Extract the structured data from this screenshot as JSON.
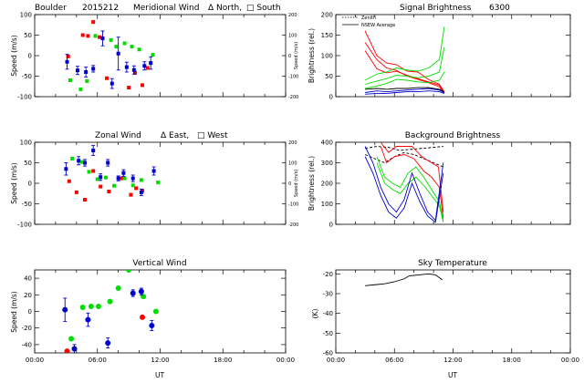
{
  "colors": {
    "north": "#ff0000",
    "south": "#00dd00",
    "mean": "#0000cc",
    "other": "#000000"
  },
  "chart_data": [
    {
      "type": "scatter",
      "id": "meridional",
      "title_parts": [
        "Boulder",
        "2015212",
        "Meridional Wind",
        "Δ North, ",
        "□ South"
      ],
      "ylabel": "Speed (m/s)",
      "y2label": "Speed (m/s)",
      "xlim": [
        0,
        24
      ],
      "ylim": [
        -100,
        100
      ],
      "y2lim": [
        -200,
        200
      ],
      "xticks": [],
      "yticks": [
        -100,
        -50,
        0,
        50,
        100
      ],
      "y2ticks": [
        -200,
        -100,
        0,
        100,
        200
      ],
      "series": [
        {
          "role": "north",
          "x": [
            3.2,
            4.6,
            5.1,
            5.6,
            6.2,
            6.9,
            9.0,
            9.6,
            10.3,
            10.8
          ],
          "y": [
            -2,
            50,
            48,
            82,
            45,
            -55,
            -78,
            -42,
            -72,
            -30
          ]
        },
        {
          "role": "south",
          "x": [
            3.4,
            4.4,
            5.0,
            5.8,
            7.3,
            7.8,
            8.6,
            9.3,
            10.0,
            11.3
          ],
          "y": [
            -60,
            -82,
            -62,
            48,
            38,
            22,
            30,
            22,
            15,
            2
          ]
        },
        {
          "role": "mean",
          "x": [
            3.1,
            4.1,
            4.9,
            5.6,
            6.5,
            7.4,
            8.0,
            8.8,
            9.5,
            10.5,
            11.1
          ],
          "y": [
            -15,
            -36,
            -40,
            -32,
            42,
            -68,
            5,
            -28,
            -35,
            -25,
            -18
          ],
          "err": [
            18,
            10,
            12,
            8,
            18,
            12,
            40,
            12,
            10,
            10,
            15
          ]
        }
      ]
    },
    {
      "type": "scatter",
      "id": "zonal",
      "title_parts": [
        "Zonal Wind",
        "Δ East, ",
        "□ West"
      ],
      "ylabel": "Speed (m/s)",
      "y2label": "Speed (m/s)",
      "xlim": [
        0,
        24
      ],
      "ylim": [
        -100,
        100
      ],
      "y2lim": [
        -200,
        200
      ],
      "xticks": [],
      "yticks": [
        -100,
        -50,
        0,
        50,
        100
      ],
      "y2ticks": [
        -200,
        -100,
        0,
        100,
        200
      ],
      "series": [
        {
          "role": "north",
          "x": [
            3.3,
            4.0,
            4.8,
            5.6,
            6.3,
            7.1,
            8.3,
            9.2,
            9.7,
            10.3
          ],
          "y": [
            5,
            -22,
            -40,
            30,
            -8,
            -20,
            12,
            -28,
            -12,
            -18
          ]
        },
        {
          "role": "south",
          "x": [
            3.6,
            4.5,
            5.2,
            6.0,
            6.8,
            7.6,
            8.6,
            9.4,
            10.2,
            11.8
          ],
          "y": [
            60,
            52,
            28,
            10,
            14,
            -6,
            12,
            -5,
            8,
            2
          ]
        },
        {
          "role": "mean",
          "x": [
            3.0,
            4.2,
            4.8,
            5.6,
            6.3,
            7.0,
            8.0,
            8.5,
            9.4,
            10.2,
            11.4
          ],
          "y": [
            35,
            55,
            50,
            80,
            15,
            50,
            12,
            25,
            12,
            -22,
            30
          ],
          "err": [
            15,
            10,
            8,
            12,
            8,
            8,
            6,
            8,
            8,
            8,
            10
          ]
        }
      ]
    },
    {
      "type": "scatter",
      "id": "vertical",
      "title": "Vertical Wind",
      "ylabel": "Speed (m/s)",
      "xlabel": "UT",
      "xlim": [
        0,
        24
      ],
      "ylim": [
        -50,
        50
      ],
      "xticks": [
        "00:00",
        "06:00",
        "12:00",
        "18:00",
        "00:00"
      ],
      "yticks": [
        -40,
        -20,
        0,
        20,
        40
      ],
      "series": [
        {
          "role": "south",
          "x": [
            3.5,
            4.6,
            5.4,
            6.1,
            7.2,
            8.0,
            9.0,
            10.4,
            11.6
          ],
          "y": [
            -33,
            5,
            6,
            6,
            12,
            28,
            52,
            18,
            0
          ]
        },
        {
          "role": "north",
          "x": [
            3.1,
            10.3
          ],
          "y": [
            -48,
            -7
          ]
        },
        {
          "role": "mean",
          "x": [
            2.9,
            3.8,
            5.1,
            7.0,
            9.4,
            10.2,
            11.2
          ],
          "y": [
            2,
            -45,
            -10,
            -38,
            22,
            24,
            -17
          ],
          "err": [
            14,
            5,
            8,
            6,
            4,
            4,
            6
          ]
        }
      ]
    },
    {
      "type": "line",
      "id": "signal",
      "title_parts": [
        "Signal Brightness",
        "6300"
      ],
      "ylabel": "Brightness (rel.)",
      "xlim": [
        0,
        24
      ],
      "ylim": [
        0,
        200
      ],
      "xticks": [],
      "yticks": [
        0,
        50,
        100,
        150,
        200
      ],
      "legend": [
        "Zenith",
        "NSEW Average"
      ],
      "series": [
        {
          "role": "north",
          "x": [
            3.0,
            4.2,
            5.2,
            6.2,
            7.3,
            8.4,
            9.5,
            10.6,
            11.1
          ],
          "y": [
            160,
            100,
            82,
            78,
            62,
            60,
            42,
            30,
            12
          ]
        },
        {
          "role": "north",
          "x": [
            3.0,
            4.2,
            5.2,
            6.2,
            7.3,
            8.4,
            9.5,
            10.6,
            11.1
          ],
          "y": [
            112,
            68,
            58,
            62,
            52,
            44,
            36,
            28,
            10
          ]
        },
        {
          "role": "north",
          "x": [
            3.0,
            4.2,
            5.2,
            6.2,
            7.3,
            8.4,
            9.5,
            10.6,
            11.1
          ],
          "y": [
            132,
            90,
            70,
            64,
            50,
            42,
            34,
            24,
            8
          ]
        },
        {
          "role": "south",
          "x": [
            3.0,
            4.2,
            5.2,
            6.2,
            7.3,
            8.4,
            9.5,
            10.6,
            11.1
          ],
          "y": [
            40,
            55,
            60,
            70,
            65,
            62,
            70,
            90,
            170
          ]
        },
        {
          "role": "south",
          "x": [
            3.0,
            4.2,
            5.2,
            6.2,
            7.3,
            8.4,
            9.5,
            10.6,
            11.1
          ],
          "y": [
            30,
            38,
            44,
            52,
            50,
            46,
            50,
            60,
            120
          ]
        },
        {
          "role": "south",
          "x": [
            3.0,
            4.2,
            5.2,
            6.2,
            7.3,
            8.4,
            9.5,
            10.6,
            11.1
          ],
          "y": [
            20,
            26,
            32,
            42,
            40,
            36,
            34,
            40,
            60
          ]
        },
        {
          "role": "mean",
          "x": [
            3.0,
            4.2,
            5.2,
            6.2,
            7.3,
            8.4,
            9.5,
            10.6,
            11.1
          ],
          "y": [
            10,
            14,
            12,
            14,
            16,
            18,
            20,
            16,
            10
          ]
        },
        {
          "role": "mean",
          "x": [
            3.0,
            4.2,
            5.2,
            6.2,
            7.3,
            8.4,
            9.5,
            10.6,
            11.1
          ],
          "y": [
            6,
            8,
            8,
            10,
            12,
            12,
            14,
            12,
            8
          ]
        },
        {
          "role": "other",
          "x": [
            3.0,
            4.2,
            5.2,
            6.2,
            7.3,
            8.4,
            9.5,
            10.6,
            11.1
          ],
          "y": [
            18,
            20,
            18,
            20,
            20,
            22,
            22,
            18,
            12
          ]
        }
      ]
    },
    {
      "type": "line",
      "id": "background",
      "title": "Background Brightness",
      "ylabel": "Brightness (rel.)",
      "xlim": [
        0,
        24
      ],
      "ylim": [
        0,
        400
      ],
      "xticks": [],
      "yticks": [
        0,
        100,
        200,
        300,
        400
      ],
      "series": [
        {
          "role": "other",
          "dash": true,
          "x": [
            3.0,
            4.2,
            5.4,
            6.5,
            7.6,
            8.8,
            10.0,
            11.0
          ],
          "y": [
            370,
            380,
            375,
            360,
            365,
            370,
            375,
            380
          ]
        },
        {
          "role": "other",
          "dash": true,
          "x": [
            3.0,
            4.0,
            5.0,
            6.0,
            7.0,
            8.0,
            9.0,
            10.0,
            11.0
          ],
          "y": [
            340,
            320,
            300,
            330,
            350,
            340,
            320,
            300,
            280
          ]
        },
        {
          "role": "north",
          "x": [
            4.6,
            5.4,
            6.2,
            7.0,
            7.8,
            8.8,
            9.8,
            10.5,
            11.0
          ],
          "y": [
            400,
            350,
            380,
            380,
            380,
            330,
            300,
            280,
            60
          ]
        },
        {
          "role": "north",
          "x": [
            4.6,
            5.2,
            6.0,
            7.0,
            8.0,
            9.0,
            9.8,
            10.6,
            11.0
          ],
          "y": [
            380,
            300,
            330,
            340,
            320,
            260,
            230,
            180,
            30
          ]
        },
        {
          "role": "south",
          "x": [
            4.2,
            5.0,
            5.8,
            6.6,
            7.4,
            8.2,
            9.0,
            9.8,
            10.6,
            11.0
          ],
          "y": [
            330,
            230,
            200,
            180,
            250,
            280,
            230,
            170,
            110,
            20
          ]
        },
        {
          "role": "south",
          "x": [
            4.2,
            5.0,
            5.8,
            6.6,
            7.4,
            8.2,
            9.0,
            9.8,
            10.6,
            11.0
          ],
          "y": [
            300,
            200,
            170,
            150,
            200,
            230,
            190,
            140,
            90,
            10
          ]
        },
        {
          "role": "mean",
          "x": [
            3.0,
            3.8,
            4.6,
            5.4,
            6.2,
            7.0,
            7.8,
            8.6,
            9.4,
            10.2,
            11.0
          ],
          "y": [
            380,
            300,
            180,
            100,
            60,
            120,
            250,
            150,
            60,
            20,
            300
          ]
        },
        {
          "role": "mean",
          "x": [
            3.0,
            3.8,
            4.6,
            5.4,
            6.2,
            7.0,
            7.8,
            8.6,
            9.4,
            10.2,
            11.0
          ],
          "y": [
            330,
            250,
            140,
            60,
            30,
            80,
            200,
            110,
            40,
            10,
            250
          ]
        }
      ]
    },
    {
      "type": "line",
      "id": "skytemp",
      "title": "Sky Temperature",
      "ylabel": "(K)",
      "xlabel": "UT",
      "xlim": [
        0,
        24
      ],
      "ylim": [
        -60,
        -18
      ],
      "xticks": [
        "00:00",
        "06:00",
        "12:00",
        "18:00",
        "00:00"
      ],
      "yticks": [
        -60,
        -50,
        -40,
        -30,
        -20
      ],
      "series": [
        {
          "role": "other",
          "x": [
            3.0,
            4.0,
            5.0,
            6.0,
            7.0,
            7.5,
            8.5,
            9.5,
            10.2,
            10.9
          ],
          "y": [
            -26,
            -25.5,
            -25,
            -24,
            -22.5,
            -21,
            -20.5,
            -20,
            -20.5,
            -23
          ]
        }
      ]
    }
  ]
}
